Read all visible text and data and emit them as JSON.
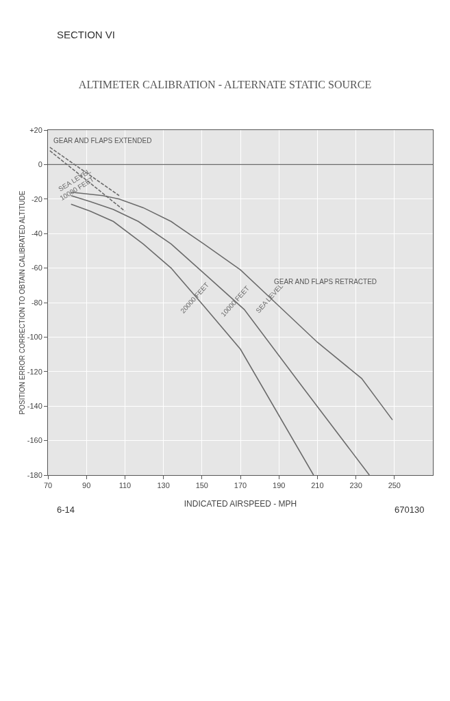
{
  "chart_data": {
    "type": "line",
    "title": "ALTIMETER CALIBRATION - ALTERNATE STATIC SOURCE",
    "xlabel": "INDICATED AIRSPEED - MPH",
    "ylabel": "POSITION ERROR CORRECTION TO OBTAIN CALIBRATED ALTITUDE",
    "annotations": [
      "SECTION VI",
      "6-14",
      "670130",
      "GEAR AND FLAPS RETRACTED",
      "GEAR AND FLAPS EXTENDED"
    ],
    "series": [
      {
        "name": "SEA LEVEL",
        "color": "#6b6b6b",
        "line_style": "solid",
        "x": [
          82,
          98.5,
          107,
          119.5,
          134,
          151,
          170,
          190,
          210,
          233,
          249
        ],
        "values": [
          -16,
          -18,
          -20,
          -25,
          -33,
          -46,
          -61,
          -82,
          -103,
          -124,
          -148
        ]
      },
      {
        "name": "10000 FEET",
        "color": "#6b6b6b",
        "line_style": "solid",
        "x": [
          82,
          92,
          104,
          117,
          134,
          153,
          172,
          203,
          237
        ],
        "values": [
          -18,
          -21.5,
          -26,
          -33,
          -46,
          -65,
          -84,
          -130,
          -180
        ]
      },
      {
        "name": "20000 FEET",
        "color": "#6b6b6b",
        "line_style": "solid",
        "x": [
          82,
          92,
          104,
          119.5,
          134,
          151,
          170,
          208
        ],
        "values": [
          -23,
          -27,
          -33,
          -46,
          -60,
          -82,
          -107,
          -180
        ]
      },
      {
        "name": "SEA LEVEL",
        "color": "#6b6b6b",
        "line_style": "dashed",
        "x": [
          71,
          89,
          107
        ],
        "values": [
          10,
          -4,
          -18
        ]
      },
      {
        "name": "10000 FEET",
        "color": "#6b6b6b",
        "line_style": "dashed",
        "x": [
          71,
          90,
          110
        ],
        "values": [
          8,
          -9,
          -27
        ]
      }
    ],
    "xlim": [
      70,
      270
    ],
    "xticks": [
      70,
      90,
      110,
      130,
      150,
      170,
      190,
      210,
      230,
      250
    ],
    "ylim": [
      -180,
      20
    ],
    "yticks": [
      {
        "value": 20,
        "label": "+20"
      },
      0,
      -20,
      -40,
      -60,
      -80,
      -100,
      -120,
      -140,
      -160,
      -180
    ],
    "ref_lines": [
      {
        "axis": "y",
        "value": 0,
        "color": "#6b6b6b"
      }
    ],
    "grid": true,
    "legend": false,
    "marker": "none"
  }
}
